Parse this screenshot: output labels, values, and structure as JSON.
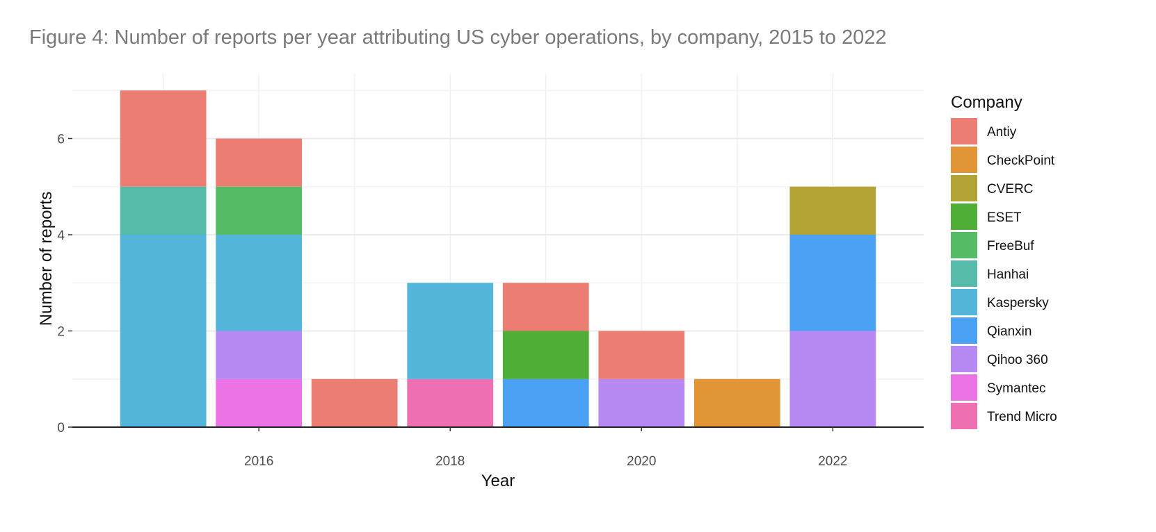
{
  "figure": {
    "title": "Figure 4: Number of reports per year attributing US cyber operations, by company, 2015 to 2022"
  },
  "chart_data": {
    "type": "bar",
    "stacked": true,
    "xlabel": "Year",
    "ylabel": "Number of reports",
    "x_categories": [
      2015,
      2016,
      2017,
      2018,
      2019,
      2020,
      2021,
      2022
    ],
    "x_ticks": [
      "2016",
      "2018",
      "2020",
      "2022"
    ],
    "y_ticks": [
      "0",
      "2",
      "4",
      "6"
    ],
    "ylim": [
      0,
      7
    ],
    "grid": true,
    "legend_title": "Company",
    "legend_position": "right",
    "series": [
      {
        "name": "Antiy",
        "color": "#ec7d73",
        "values": [
          2,
          1,
          1,
          0,
          1,
          1,
          0,
          0
        ]
      },
      {
        "name": "CheckPoint",
        "color": "#e29537",
        "values": [
          0,
          0,
          0,
          0,
          0,
          0,
          1,
          0
        ]
      },
      {
        "name": "CVERC",
        "color": "#b1a435",
        "values": [
          0,
          0,
          0,
          0,
          0,
          0,
          0,
          1
        ]
      },
      {
        "name": "ESET",
        "color": "#4eae36",
        "values": [
          0,
          0,
          0,
          0,
          1,
          0,
          0,
          0
        ]
      },
      {
        "name": "FreeBuf",
        "color": "#55bb65",
        "values": [
          0,
          1,
          0,
          0,
          0,
          0,
          0,
          0
        ]
      },
      {
        "name": "Hanhai",
        "color": "#57bba9",
        "values": [
          1,
          0,
          0,
          0,
          0,
          0,
          0,
          0
        ]
      },
      {
        "name": "Kaspersky",
        "color": "#54b5da",
        "values": [
          4,
          2,
          0,
          2,
          0,
          0,
          0,
          0
        ]
      },
      {
        "name": "Qianxin",
        "color": "#4ba2f5",
        "values": [
          0,
          0,
          0,
          0,
          1,
          0,
          0,
          2
        ]
      },
      {
        "name": "Qihoo 360",
        "color": "#b78af3",
        "values": [
          0,
          1,
          0,
          0,
          0,
          1,
          0,
          2
        ]
      },
      {
        "name": "Symantec",
        "color": "#ec73e6",
        "values": [
          0,
          1,
          0,
          0,
          0,
          0,
          0,
          0
        ]
      },
      {
        "name": "Trend Micro",
        "color": "#ee6fb2",
        "values": [
          0,
          0,
          0,
          1,
          0,
          0,
          0,
          0
        ]
      }
    ]
  }
}
